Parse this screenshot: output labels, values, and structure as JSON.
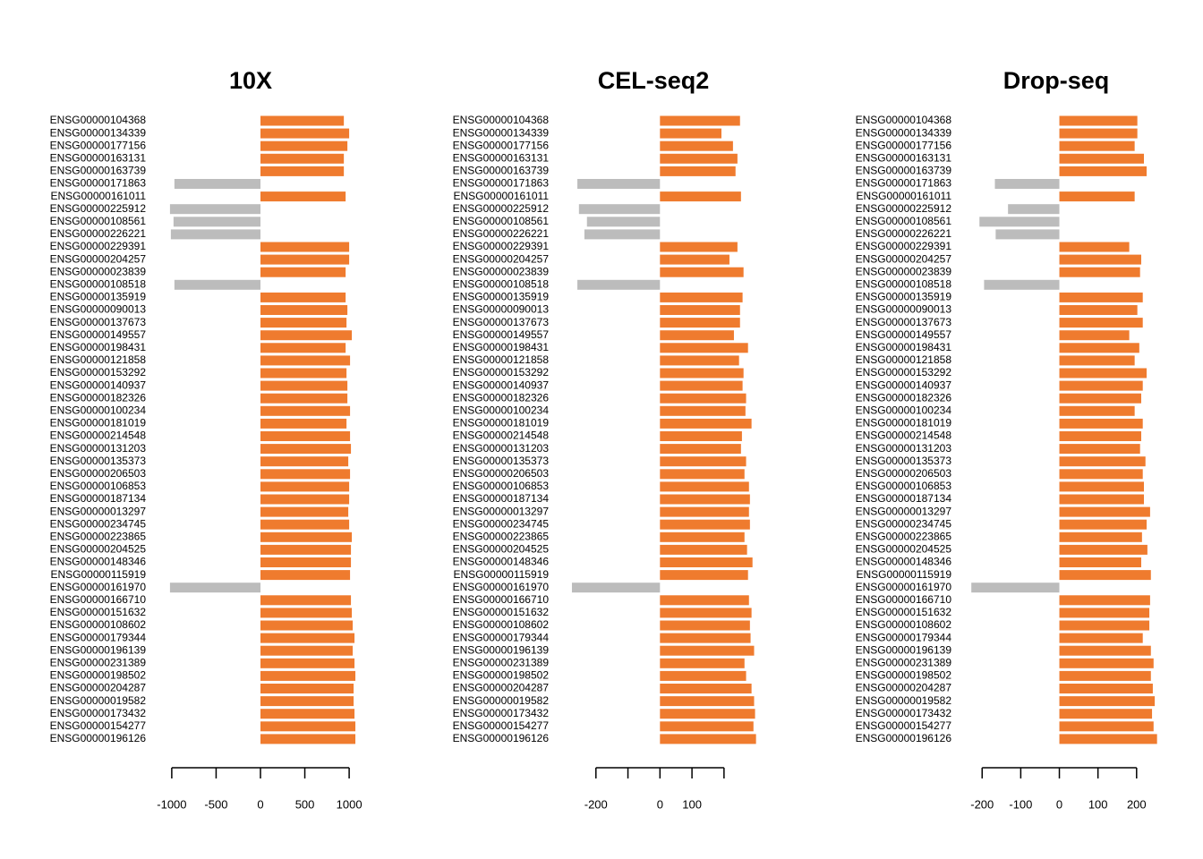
{
  "chart_data": [
    {
      "type": "bar",
      "orientation": "horizontal",
      "title": "10X",
      "categories": [
        "ENSG00000104368",
        "ENSG00000134339",
        "ENSG00000177156",
        "ENSG00000163131",
        "ENSG00000163739",
        "ENSG00000171863",
        "ENSG00000161011",
        "ENSG00000225912",
        "ENSG00000108561",
        "ENSG00000226221",
        "ENSG00000229391",
        "ENSG00000204257",
        "ENSG00000023839",
        "ENSG00000108518",
        "ENSG00000135919",
        "ENSG00000090013",
        "ENSG00000137673",
        "ENSG00000149557",
        "ENSG00000198431",
        "ENSG00000121858",
        "ENSG00000153292",
        "ENSG00000140937",
        "ENSG00000182326",
        "ENSG00000100234",
        "ENSG00000181019",
        "ENSG00000214548",
        "ENSG00000131203",
        "ENSG00000135373",
        "ENSG00000206503",
        "ENSG00000106853",
        "ENSG00000187134",
        "ENSG00000013297",
        "ENSG00000234745",
        "ENSG00000223865",
        "ENSG00000204525",
        "ENSG00000148346",
        "ENSG00000115919",
        "ENSG00000161970",
        "ENSG00000166710",
        "ENSG00000151632",
        "ENSG00000108602",
        "ENSG00000179344",
        "ENSG00000196139",
        "ENSG00000231389",
        "ENSG00000198502",
        "ENSG00000204287",
        "ENSG00000019582",
        "ENSG00000173432",
        "ENSG00000154277",
        "ENSG00000196126"
      ],
      "values": [
        940,
        1000,
        980,
        940,
        940,
        -970,
        960,
        -1020,
        -980,
        -1010,
        1000,
        1000,
        960,
        -970,
        960,
        980,
        970,
        1030,
        960,
        1010,
        970,
        980,
        980,
        1010,
        970,
        1010,
        1020,
        990,
        1010,
        1000,
        1000,
        990,
        1000,
        1030,
        1020,
        1020,
        1010,
        -1020,
        1020,
        1030,
        1040,
        1060,
        1040,
        1060,
        1070,
        1050,
        1050,
        1060,
        1070,
        1070
      ],
      "positive_color": "#ef7b2e",
      "negative_color": "#bcbcbc",
      "xlim": [
        -1120,
        1100
      ],
      "xticks": [
        -1000,
        -500,
        0,
        500,
        1000
      ]
    },
    {
      "type": "bar",
      "orientation": "horizontal",
      "title": "CEL-seq2",
      "categories": [
        "ENSG00000104368",
        "ENSG00000134339",
        "ENSG00000177156",
        "ENSG00000163131",
        "ENSG00000163739",
        "ENSG00000171863",
        "ENSG00000161011",
        "ENSG00000225912",
        "ENSG00000108561",
        "ENSG00000226221",
        "ENSG00000229391",
        "ENSG00000204257",
        "ENSG00000023839",
        "ENSG00000108518",
        "ENSG00000135919",
        "ENSG00000090013",
        "ENSG00000137673",
        "ENSG00000149557",
        "ENSG00000198431",
        "ENSG00000121858",
        "ENSG00000153292",
        "ENSG00000140937",
        "ENSG00000182326",
        "ENSG00000100234",
        "ENSG00000181019",
        "ENSG00000214548",
        "ENSG00000131203",
        "ENSG00000135373",
        "ENSG00000206503",
        "ENSG00000106853",
        "ENSG00000187134",
        "ENSG00000013297",
        "ENSG00000234745",
        "ENSG00000223865",
        "ENSG00000204525",
        "ENSG00000148346",
        "ENSG00000115919",
        "ENSG00000161970",
        "ENSG00000166710",
        "ENSG00000151632",
        "ENSG00000108602",
        "ENSG00000179344",
        "ENSG00000196139",
        "ENSG00000231389",
        "ENSG00000198502",
        "ENSG00000204287",
        "ENSG00000019582",
        "ENSG00000173432",
        "ENSG00000154277",
        "ENSG00000196126"
      ],
      "values": [
        250,
        192,
        228,
        242,
        236,
        -258,
        253,
        -253,
        -228,
        -236,
        242,
        217,
        261,
        -258,
        258,
        250,
        250,
        231,
        275,
        247,
        261,
        258,
        269,
        267,
        286,
        256,
        253,
        269,
        264,
        278,
        281,
        278,
        281,
        264,
        272,
        289,
        275,
        -275,
        278,
        286,
        281,
        283,
        294,
        264,
        269,
        286,
        294,
        297,
        292,
        300
      ],
      "positive_color": "#ef7b2e",
      "negative_color": "#bcbcbc",
      "xlim": [
        -300,
        315
      ],
      "xticks": [
        -200,
        {
          "value": -100,
          "label": null
        },
        0,
        100,
        {
          "value": 200,
          "label": null
        }
      ]
    },
    {
      "type": "bar",
      "orientation": "horizontal",
      "title": "Drop-seq",
      "categories": [
        "ENSG00000104368",
        "ENSG00000134339",
        "ENSG00000177156",
        "ENSG00000163131",
        "ENSG00000163739",
        "ENSG00000171863",
        "ENSG00000161011",
        "ENSG00000225912",
        "ENSG00000108561",
        "ENSG00000226221",
        "ENSG00000229391",
        "ENSG00000204257",
        "ENSG00000023839",
        "ENSG00000108518",
        "ENSG00000135919",
        "ENSG00000090013",
        "ENSG00000137673",
        "ENSG00000149557",
        "ENSG00000198431",
        "ENSG00000121858",
        "ENSG00000153292",
        "ENSG00000140937",
        "ENSG00000182326",
        "ENSG00000100234",
        "ENSG00000181019",
        "ENSG00000214548",
        "ENSG00000131203",
        "ENSG00000135373",
        "ENSG00000206503",
        "ENSG00000106853",
        "ENSG00000187134",
        "ENSG00000013297",
        "ENSG00000234745",
        "ENSG00000223865",
        "ENSG00000204525",
        "ENSG00000148346",
        "ENSG00000115919",
        "ENSG00000161970",
        "ENSG00000166710",
        "ENSG00000151632",
        "ENSG00000108602",
        "ENSG00000179344",
        "ENSG00000196139",
        "ENSG00000231389",
        "ENSG00000198502",
        "ENSG00000204287",
        "ENSG00000019582",
        "ENSG00000173432",
        "ENSG00000154277",
        "ENSG00000196126"
      ],
      "values": [
        202,
        202,
        195,
        219,
        226,
        -167,
        195,
        -133,
        -207,
        -165,
        181,
        212,
        209,
        -195,
        216,
        202,
        216,
        181,
        207,
        195,
        226,
        216,
        212,
        195,
        216,
        212,
        209,
        223,
        216,
        219,
        219,
        235,
        226,
        214,
        228,
        212,
        237,
        -228,
        235,
        233,
        233,
        216,
        237,
        244,
        237,
        242,
        247,
        240,
        244,
        253
      ],
      "positive_color": "#ef7b2e",
      "negative_color": "#bcbcbc",
      "xlim": [
        -240,
        270
      ],
      "xticks": [
        -200,
        -100,
        0,
        100,
        200
      ]
    }
  ]
}
